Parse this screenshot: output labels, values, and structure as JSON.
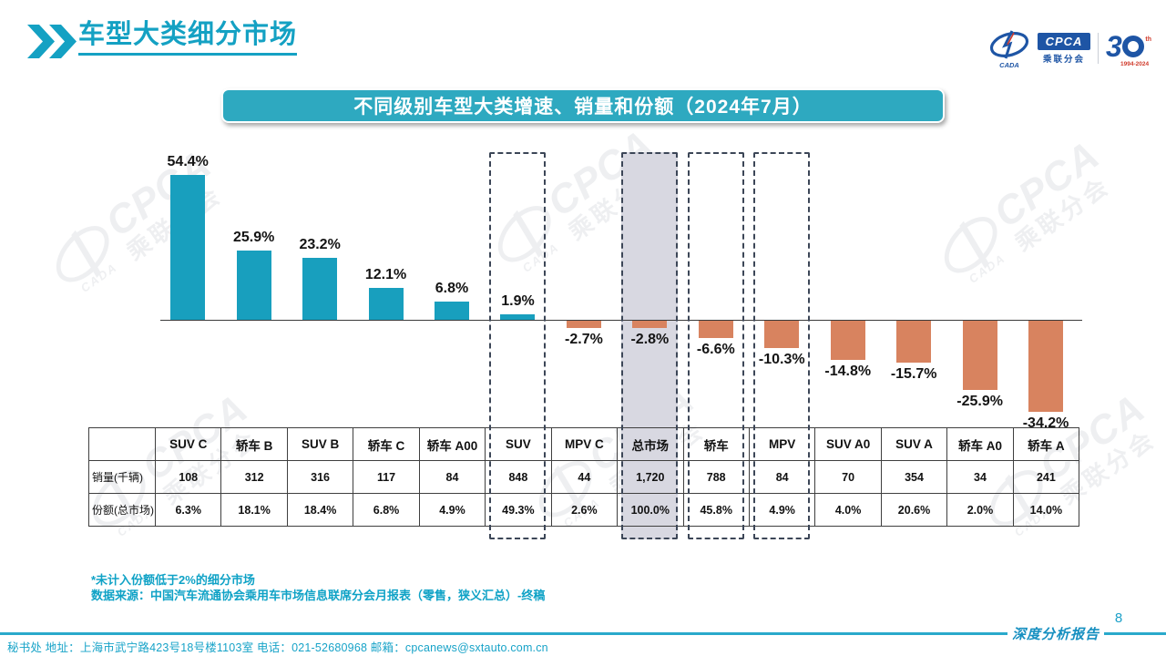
{
  "header": {
    "title": "车型大类细分市场"
  },
  "logo": {
    "cada_text": "CADA",
    "cpca_text": "CPCA",
    "cpca_sub": "乘联分会",
    "anniversary_number": "3",
    "anniversary_th": "th",
    "anniversary_years": "1994-2024"
  },
  "chart_data": {
    "type": "bar",
    "title": "不同级别车型大类增速、销量和份额（2024年7月）",
    "categories": [
      "SUV C",
      "轿车 B",
      "SUV B",
      "轿车 C",
      "轿车 A00",
      "SUV",
      "MPV C",
      "总市场",
      "轿车",
      "MPV",
      "SUV A0",
      "SUV A",
      "轿车 A0",
      "轿车 A"
    ],
    "values": [
      54.4,
      25.9,
      23.2,
      12.1,
      6.8,
      1.9,
      -2.7,
      -2.8,
      -6.6,
      -10.3,
      -14.8,
      -15.7,
      -25.9,
      -34.2
    ],
    "labels": [
      "54.4%",
      "25.9%",
      "23.2%",
      "12.1%",
      "6.8%",
      "1.9%",
      "-2.7%",
      "-2.8%",
      "-6.6%",
      "-10.3%",
      "-14.8%",
      "-15.7%",
      "-25.9%",
      "-34.2%"
    ],
    "highlighted_categories": [
      "SUV",
      "总市场",
      "轿车",
      "MPV"
    ],
    "gray_band_category": "总市场",
    "positive_color": "#189FBE",
    "negative_color": "#D8835F",
    "ylabel": "",
    "xlabel": "",
    "grid": false,
    "legend": false
  },
  "table": {
    "corner_label": "",
    "rows": [
      {
        "label": "销量(千辆)",
        "values": [
          "108",
          "312",
          "316",
          "117",
          "84",
          "848",
          "44",
          "1,720",
          "788",
          "84",
          "70",
          "354",
          "34",
          "241"
        ]
      },
      {
        "label": "份额(总市场)",
        "values": [
          "6.3%",
          "18.1%",
          "18.4%",
          "6.8%",
          "4.9%",
          "49.3%",
          "2.6%",
          "100.0%",
          "45.8%",
          "4.9%",
          "4.0%",
          "20.6%",
          "2.0%",
          "14.0%"
        ]
      }
    ]
  },
  "notes": {
    "line1": "*未计入份额低于2%的细分市场",
    "line2": "数据来源：中国汽车流通协会乘用车市场信息联席分会月报表（零售，狭义汇总）-终稿"
  },
  "footer": {
    "contact": "秘书处  地址：上海市武宁路423号18号楼1103室  电话：021-52680968   邮箱：cpcanews@sxtauto.com.cn",
    "report_label": "深度分析报告",
    "page_number": "8"
  },
  "watermark": {
    "latin": "CPCA",
    "cjk": "乘联分会",
    "sub": "CADA"
  },
  "colors": {
    "accent_teal": "#14A1C3",
    "banner_teal": "#2EA9C0",
    "logo_blue": "#1E55A5",
    "logo_red": "#D03A2B",
    "gray_band": "#D8D8E1"
  }
}
